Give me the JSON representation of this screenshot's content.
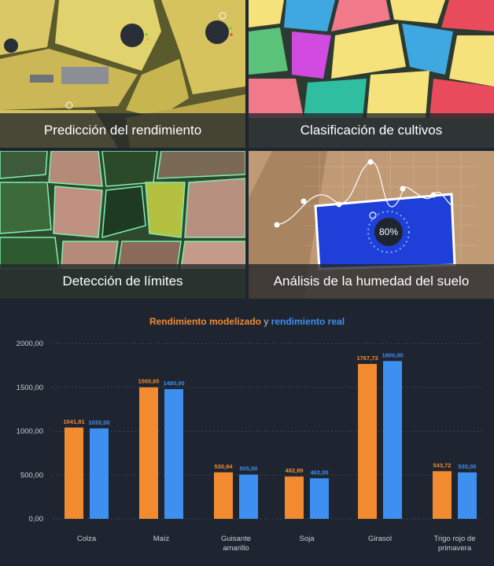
{
  "tiles": [
    {
      "caption": "Predicción del rendimiento"
    },
    {
      "caption": "Clasificación de cultivos"
    },
    {
      "caption": "Detección de límites"
    },
    {
      "caption": "Análisis de la humedad del suelo",
      "badge": "80%"
    }
  ],
  "colors": {
    "modeled": "#f28a30",
    "real": "#3d8ff0"
  },
  "chart_data": {
    "type": "bar",
    "title_part1": "Rendimiento modelizado",
    "title_part2": "y",
    "title_part3": "rendimiento real",
    "categories": [
      [
        "Colza"
      ],
      [
        "Maíz"
      ],
      [
        "Guisante",
        "amarillo"
      ],
      [
        "Soja"
      ],
      [
        "Girasol"
      ],
      [
        "Trigo rojo de",
        "primavera"
      ]
    ],
    "series": [
      {
        "key": "modeled",
        "values": [
          1041.81,
          1500.65,
          530.94,
          482.89,
          1767.73,
          543.72
        ],
        "labels": [
          "1041,81",
          "1500,65",
          "530,94",
          "482,89",
          "1767,73",
          "543,72"
        ]
      },
      {
        "key": "real",
        "values": [
          1032.0,
          1480.0,
          505.0,
          462.0,
          1800.0,
          530.0
        ],
        "labels": [
          "1032,00",
          "1480,00",
          "505,00",
          "462,00",
          "1800,00",
          "530,00"
        ]
      }
    ],
    "yticks": [
      0,
      500,
      1000,
      1500,
      2000
    ],
    "ytick_labels": [
      "0,00",
      "500,00",
      "1000,00",
      "1500,00",
      "2000,00"
    ],
    "ylim": [
      0,
      2000
    ],
    "grid": true
  }
}
